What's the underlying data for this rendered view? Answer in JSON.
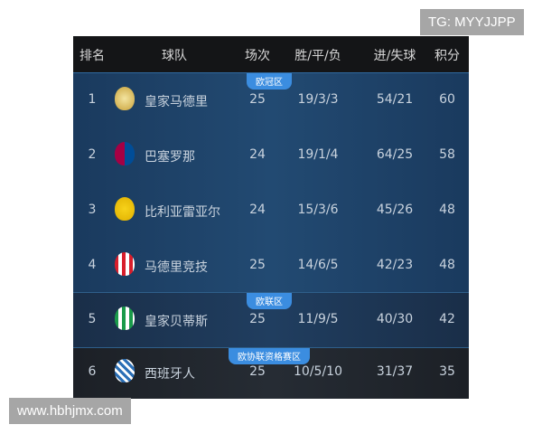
{
  "header": {
    "rank": "排名",
    "team": "球队",
    "played": "场次",
    "wdl": "胜/平/负",
    "goals": "进/失球",
    "points": "积分"
  },
  "zones": [
    {
      "label": "欧冠区",
      "color": "#3b8de0"
    },
    {
      "label": "欧联区",
      "color": "#3b8de0"
    },
    {
      "label": "欧协联资格赛区",
      "color": "#3b8de0"
    }
  ],
  "rows": [
    {
      "rank": "1",
      "team": "皇家马德里",
      "played": "25",
      "wdl": "19/3/3",
      "goals": "54/21",
      "points": "60",
      "logo": "real-madrid-crest"
    },
    {
      "rank": "2",
      "team": "巴塞罗那",
      "played": "24",
      "wdl": "19/1/4",
      "goals": "64/25",
      "points": "58",
      "logo": "barcelona-crest"
    },
    {
      "rank": "3",
      "team": "比利亚雷亚尔",
      "played": "24",
      "wdl": "15/3/6",
      "goals": "45/26",
      "points": "48",
      "logo": "villarreal-crest"
    },
    {
      "rank": "4",
      "team": "马德里竞技",
      "played": "25",
      "wdl": "14/6/5",
      "goals": "42/23",
      "points": "48",
      "logo": "atletico-crest"
    },
    {
      "rank": "5",
      "team": "皇家贝蒂斯",
      "played": "25",
      "wdl": "11/9/5",
      "goals": "40/30",
      "points": "42",
      "logo": "betis-crest"
    },
    {
      "rank": "6",
      "team": "西班牙人",
      "played": "25",
      "wdl": "10/5/10",
      "goals": "31/37",
      "points": "35",
      "logo": "espanyol-crest"
    }
  ],
  "watermarks": {
    "top": "TG: MYYJJPP",
    "bottom": "www.hbhjmx.com"
  }
}
